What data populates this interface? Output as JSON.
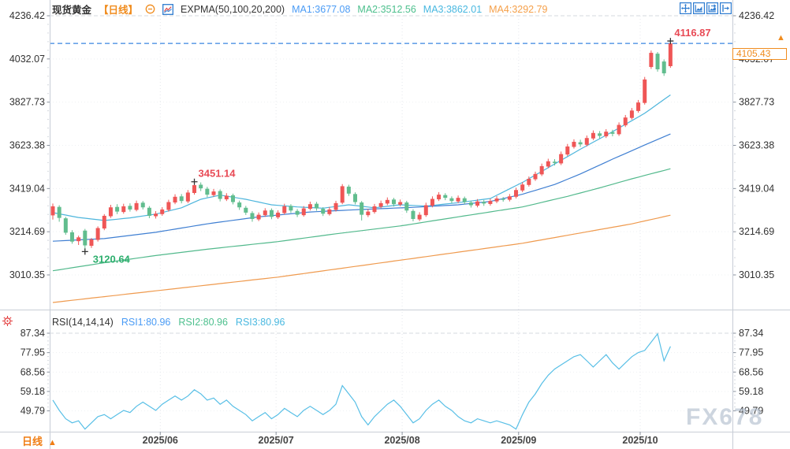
{
  "header": {
    "symbol": "现货黄金",
    "period": "【日线】",
    "indicator": "EXPMA(50,100,20,200)",
    "ma_labels": [
      {
        "label": "MA1:3677.08",
        "color": "#4a9bf5"
      },
      {
        "label": "MA2:3512.56",
        "color": "#4ec08e"
      },
      {
        "label": "MA3:3862.01",
        "color": "#49b8e0"
      },
      {
        "label": "MA4:3292.79",
        "color": "#f5a04a"
      }
    ]
  },
  "toolbar": {
    "icons": [
      "pan-crosshair",
      "axis-zoom",
      "axis-zoom-left",
      "pan-right"
    ]
  },
  "rsi_header": {
    "indicator": "RSI(14,14,14)",
    "values": [
      {
        "label": "RSI1:80.96",
        "color": "#4a9bf5"
      },
      {
        "label": "RSI2:80.96",
        "color": "#4ec08e"
      },
      {
        "label": "RSI3:80.96",
        "color": "#49b8e0"
      }
    ]
  },
  "price_label": {
    "display": "4105.43",
    "color": "#f08c1e"
  },
  "bottom_left": {
    "label": "日线",
    "arrow": "▲"
  },
  "watermark": "FX678",
  "chart_data": {
    "type": "candlestick",
    "title": "现货黄金 日线",
    "price_axis": {
      "ticks": [
        4236.42,
        4032.07,
        3827.73,
        3623.38,
        3419.04,
        3214.69,
        3010.35
      ],
      "min": 3010.35,
      "max": 4236.42
    },
    "x_axis": {
      "labels": [
        {
          "label": "2025/06",
          "i": 16.7
        },
        {
          "label": "2025/07",
          "i": 34.7
        },
        {
          "label": "2025/08",
          "i": 54.3
        },
        {
          "label": "2025/09",
          "i": 72.4
        },
        {
          "label": "2025/10",
          "i": 91.3
        }
      ]
    },
    "current_price": 4105.43,
    "style": {
      "up": "#ef5656",
      "down": "#61bd8e",
      "price_line": "#3a86e0",
      "rsi_line": "#58bfe6",
      "grid": "#eef0f3",
      "axis_text": "#333333"
    },
    "candles": [
      [
        3292,
        3348,
        3272,
        3335
      ],
      [
        3332,
        3340,
        3262,
        3280
      ],
      [
        3278,
        3285,
        3200,
        3210
      ],
      [
        3212,
        3222,
        3158,
        3168
      ],
      [
        3170,
        3196,
        3152,
        3188
      ],
      [
        3220,
        3228,
        3120.64,
        3150
      ],
      [
        3148,
        3185,
        3138,
        3178
      ],
      [
        3176,
        3240,
        3168,
        3232
      ],
      [
        3230,
        3298,
        3222,
        3290
      ],
      [
        3288,
        3342,
        3280,
        3330
      ],
      [
        3332,
        3345,
        3298,
        3310
      ],
      [
        3308,
        3347,
        3300,
        3335
      ],
      [
        3337,
        3349,
        3310,
        3320
      ],
      [
        3318,
        3362,
        3311,
        3350
      ],
      [
        3352,
        3360,
        3320,
        3330
      ],
      [
        3328,
        3336,
        3279,
        3290
      ],
      [
        3288,
        3312,
        3277,
        3300
      ],
      [
        3298,
        3331,
        3290,
        3320
      ],
      [
        3318,
        3366,
        3310,
        3355
      ],
      [
        3353,
        3392,
        3345,
        3380
      ],
      [
        3382,
        3393,
        3349,
        3360
      ],
      [
        3358,
        3412,
        3350,
        3400
      ],
      [
        3398,
        3451.14,
        3390,
        3435
      ],
      [
        3437,
        3448,
        3407,
        3420
      ],
      [
        3418,
        3427,
        3378,
        3390
      ],
      [
        3388,
        3417,
        3380,
        3405
      ],
      [
        3407,
        3415,
        3358,
        3370
      ],
      [
        3368,
        3397,
        3360,
        3385
      ],
      [
        3387,
        3395,
        3344,
        3355
      ],
      [
        3353,
        3362,
        3318,
        3330
      ],
      [
        3328,
        3337,
        3294,
        3305
      ],
      [
        3303,
        3312,
        3262,
        3275
      ],
      [
        3273,
        3306,
        3265,
        3295
      ],
      [
        3293,
        3326,
        3285,
        3315
      ],
      [
        3317,
        3325,
        3274,
        3285
      ],
      [
        3283,
        3316,
        3275,
        3305
      ],
      [
        3303,
        3347,
        3296,
        3335
      ],
      [
        3337,
        3345,
        3304,
        3315
      ],
      [
        3313,
        3322,
        3284,
        3295
      ],
      [
        3293,
        3336,
        3286,
        3325
      ],
      [
        3323,
        3357,
        3315,
        3345
      ],
      [
        3347,
        3356,
        3314,
        3325
      ],
      [
        3323,
        3331,
        3289,
        3300
      ],
      [
        3298,
        3332,
        3291,
        3320
      ],
      [
        3318,
        3361,
        3310,
        3350
      ],
      [
        3352,
        3440,
        3345,
        3430
      ],
      [
        3428,
        3437,
        3384,
        3395
      ],
      [
        3393,
        3401,
        3344,
        3355
      ],
      [
        3353,
        3360,
        3268,
        3295
      ],
      [
        3293,
        3322,
        3284,
        3310
      ],
      [
        3308,
        3346,
        3300,
        3335
      ],
      [
        3333,
        3362,
        3325,
        3350
      ],
      [
        3348,
        3377,
        3340,
        3365
      ],
      [
        3367,
        3375,
        3334,
        3345
      ],
      [
        3343,
        3367,
        3335,
        3355
      ],
      [
        3353,
        3361,
        3304,
        3315
      ],
      [
        3313,
        3321,
        3264,
        3275
      ],
      [
        3273,
        3307,
        3265,
        3295
      ],
      [
        3293,
        3352,
        3285,
        3340
      ],
      [
        3338,
        3382,
        3330,
        3370
      ],
      [
        3368,
        3402,
        3360,
        3390
      ],
      [
        3388,
        3397,
        3364,
        3375
      ],
      [
        3373,
        3382,
        3349,
        3360
      ],
      [
        3358,
        3386,
        3350,
        3375
      ],
      [
        3373,
        3381,
        3344,
        3355
      ],
      [
        3353,
        3361,
        3329,
        3340
      ],
      [
        3338,
        3369,
        3330,
        3358
      ],
      [
        3356,
        3365,
        3337,
        3348
      ],
      [
        3346,
        3371,
        3338,
        3360
      ],
      [
        3358,
        3383,
        3350,
        3372
      ],
      [
        3370,
        3379,
        3357,
        3368
      ],
      [
        3366,
        3393,
        3358,
        3382
      ],
      [
        3380,
        3423,
        3372,
        3412
      ],
      [
        3410,
        3449,
        3402,
        3438
      ],
      [
        3436,
        3476,
        3428,
        3465
      ],
      [
        3463,
        3499,
        3455,
        3488
      ],
      [
        3486,
        3537,
        3478,
        3525
      ],
      [
        3523,
        3560,
        3515,
        3548
      ],
      [
        3546,
        3558,
        3528,
        3540
      ],
      [
        3538,
        3594,
        3530,
        3582
      ],
      [
        3580,
        3630,
        3572,
        3618
      ],
      [
        3616,
        3652,
        3608,
        3640
      ],
      [
        3638,
        3650,
        3616,
        3628
      ],
      [
        3626,
        3670,
        3618,
        3658
      ],
      [
        3656,
        3694,
        3648,
        3682
      ],
      [
        3680,
        3691,
        3656,
        3668
      ],
      [
        3666,
        3700,
        3658,
        3688
      ],
      [
        3686,
        3697,
        3666,
        3678
      ],
      [
        3676,
        3732,
        3668,
        3720
      ],
      [
        3718,
        3767,
        3710,
        3755
      ],
      [
        3753,
        3800,
        3745,
        3788
      ],
      [
        3786,
        3838,
        3778,
        3826
      ],
      [
        3824,
        3947,
        3816,
        3935
      ],
      [
        3994,
        4072,
        3985,
        4061
      ],
      [
        4057,
        4065,
        3972,
        3983
      ],
      [
        4020,
        4030,
        3952,
        3964
      ],
      [
        3998,
        4116.87,
        3990,
        4105.43
      ]
    ],
    "ma_series": [
      {
        "name": "EXPMA20",
        "color": "#4db5dc",
        "anchors": [
          [
            0,
            3305
          ],
          [
            4,
            3282
          ],
          [
            8,
            3268
          ],
          [
            12,
            3280
          ],
          [
            16,
            3298
          ],
          [
            20,
            3328
          ],
          [
            23,
            3368
          ],
          [
            26,
            3388
          ],
          [
            30,
            3368
          ],
          [
            34,
            3342
          ],
          [
            38,
            3332
          ],
          [
            42,
            3326
          ],
          [
            46,
            3342
          ],
          [
            50,
            3328
          ],
          [
            54,
            3342
          ],
          [
            58,
            3336
          ],
          [
            63,
            3352
          ],
          [
            68,
            3372
          ],
          [
            73,
            3448
          ],
          [
            78,
            3535
          ],
          [
            82,
            3605
          ],
          [
            87,
            3688
          ],
          [
            92,
            3775
          ],
          [
            96,
            3862.01
          ]
        ]
      },
      {
        "name": "EXPMA50",
        "color": "#3f7fd2",
        "anchors": [
          [
            0,
            3170
          ],
          [
            8,
            3182
          ],
          [
            16,
            3212
          ],
          [
            24,
            3252
          ],
          [
            32,
            3285
          ],
          [
            40,
            3308
          ],
          [
            48,
            3320
          ],
          [
            56,
            3330
          ],
          [
            63,
            3342
          ],
          [
            68,
            3358
          ],
          [
            73,
            3392
          ],
          [
            78,
            3438
          ],
          [
            82,
            3488
          ],
          [
            87,
            3558
          ],
          [
            92,
            3625
          ],
          [
            96,
            3677.08
          ]
        ]
      },
      {
        "name": "EXPMA100",
        "color": "#52b98c",
        "anchors": [
          [
            0,
            3030
          ],
          [
            8,
            3068
          ],
          [
            16,
            3102
          ],
          [
            24,
            3132
          ],
          [
            35,
            3168
          ],
          [
            44,
            3205
          ],
          [
            54,
            3242
          ],
          [
            63,
            3285
          ],
          [
            73,
            3332
          ],
          [
            80,
            3382
          ],
          [
            85,
            3422
          ],
          [
            90,
            3465
          ],
          [
            96,
            3512.56
          ]
        ]
      },
      {
        "name": "EXPMA200",
        "color": "#ef9a4e",
        "anchors": [
          [
            0,
            2880
          ],
          [
            16,
            2935
          ],
          [
            35,
            3000
          ],
          [
            54,
            3080
          ],
          [
            73,
            3160
          ],
          [
            90,
            3252
          ],
          [
            96,
            3292.79
          ]
        ]
      }
    ],
    "rsi": {
      "ticks": [
        87.34,
        77.95,
        68.56,
        59.18,
        49.79
      ],
      "values": [
        55,
        50,
        46,
        44,
        45,
        41,
        44,
        47,
        48,
        46,
        48,
        50,
        49,
        52,
        54,
        52,
        50,
        53,
        55,
        57,
        55,
        57,
        60,
        58,
        55,
        56,
        53,
        55,
        52,
        50,
        48,
        45,
        47,
        49,
        46,
        48,
        51,
        49,
        47,
        50,
        52,
        50,
        48,
        50,
        53,
        62,
        58,
        54,
        47,
        43,
        47,
        50,
        53,
        55,
        52,
        48,
        44,
        46,
        50,
        53,
        55,
        52,
        50,
        47,
        45,
        44,
        46,
        45,
        44,
        45,
        44,
        43,
        41,
        48,
        54,
        58,
        63,
        67,
        70,
        72,
        74,
        76,
        77,
        74,
        71,
        74,
        77,
        73,
        70,
        73,
        76,
        78,
        79,
        83,
        87,
        74,
        80.96
      ]
    },
    "annotations": [
      {
        "text": "3120.64",
        "candle": 5,
        "price": 3120.64,
        "placement": "below",
        "color": "#2eaf6e"
      },
      {
        "text": "3451.14",
        "candle": 22,
        "price": 3451.14,
        "placement": "above",
        "color": "#e84a55"
      },
      {
        "text": "4116.87",
        "candle": 96,
        "price": 4116.87,
        "placement": "above",
        "color": "#e84a55"
      }
    ]
  }
}
